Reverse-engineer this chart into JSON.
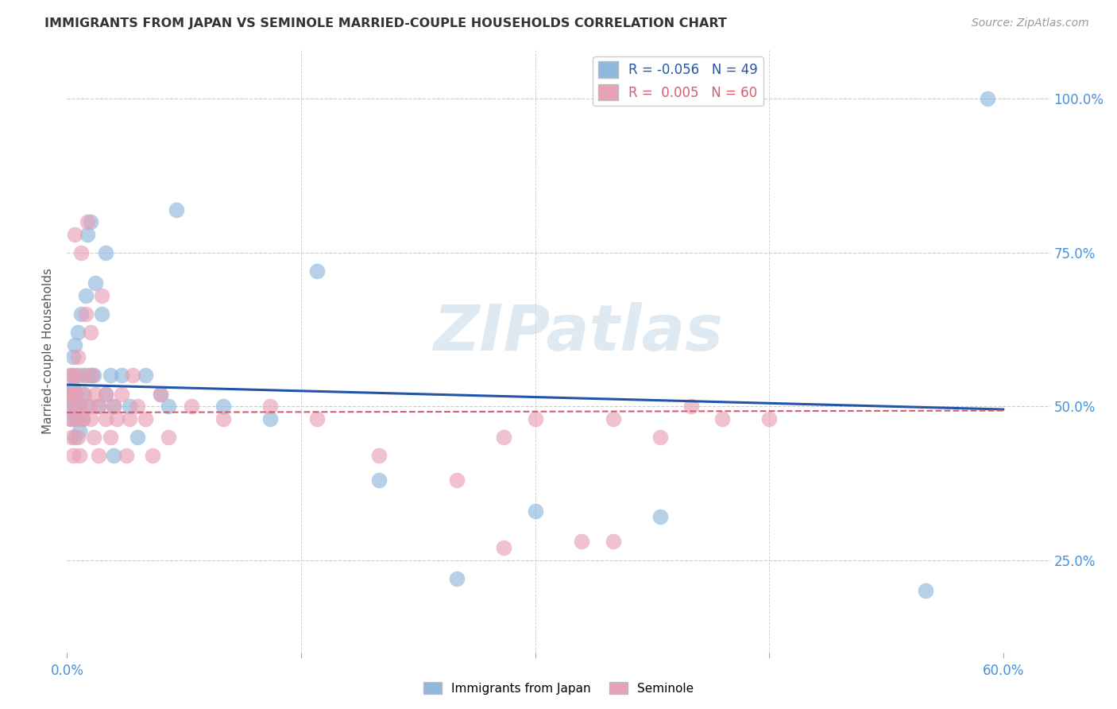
{
  "title": "IMMIGRANTS FROM JAPAN VS SEMINOLE MARRIED-COUPLE HOUSEHOLDS CORRELATION CHART",
  "source": "Source: ZipAtlas.com",
  "ylabel": "Married-couple Households",
  "ytick_positions": [
    0.25,
    0.5,
    0.75,
    1.0
  ],
  "xtick_positions": [
    0.0,
    0.15,
    0.3,
    0.45,
    0.6
  ],
  "xtick_labels_show": [
    "0.0%",
    "",
    "",
    "",
    "60.0%"
  ],
  "xlim": [
    0.0,
    0.63
  ],
  "ylim": [
    0.1,
    1.08
  ],
  "blue_R": -0.056,
  "blue_N": 49,
  "pink_R": 0.005,
  "pink_N": 60,
  "watermark": "ZIPatlas",
  "blue_scatter_x": [
    0.001,
    0.002,
    0.003,
    0.003,
    0.004,
    0.004,
    0.005,
    0.005,
    0.005,
    0.006,
    0.006,
    0.007,
    0.007,
    0.008,
    0.008,
    0.009,
    0.01,
    0.01,
    0.012,
    0.012,
    0.013,
    0.013,
    0.015,
    0.015,
    0.017,
    0.018,
    0.02,
    0.022,
    0.025,
    0.025,
    0.028,
    0.03,
    0.03,
    0.035,
    0.04,
    0.045,
    0.05,
    0.06,
    0.065,
    0.07,
    0.1,
    0.13,
    0.16,
    0.2,
    0.25,
    0.3,
    0.38,
    0.55,
    0.59
  ],
  "blue_scatter_y": [
    0.52,
    0.5,
    0.55,
    0.48,
    0.53,
    0.58,
    0.5,
    0.45,
    0.6,
    0.52,
    0.48,
    0.55,
    0.62,
    0.5,
    0.46,
    0.65,
    0.52,
    0.48,
    0.68,
    0.55,
    0.5,
    0.78,
    0.55,
    0.8,
    0.55,
    0.7,
    0.5,
    0.65,
    0.52,
    0.75,
    0.55,
    0.5,
    0.42,
    0.55,
    0.5,
    0.45,
    0.55,
    0.52,
    0.5,
    0.82,
    0.5,
    0.48,
    0.72,
    0.38,
    0.22,
    0.33,
    0.32,
    0.2,
    1.0
  ],
  "pink_scatter_x": [
    0.001,
    0.002,
    0.002,
    0.003,
    0.003,
    0.004,
    0.004,
    0.005,
    0.005,
    0.006,
    0.006,
    0.007,
    0.007,
    0.008,
    0.008,
    0.009,
    0.01,
    0.01,
    0.011,
    0.012,
    0.013,
    0.014,
    0.015,
    0.015,
    0.016,
    0.017,
    0.018,
    0.02,
    0.02,
    0.022,
    0.025,
    0.025,
    0.028,
    0.03,
    0.032,
    0.035,
    0.038,
    0.04,
    0.042,
    0.045,
    0.05,
    0.055,
    0.06,
    0.065,
    0.08,
    0.1,
    0.13,
    0.16,
    0.2,
    0.25,
    0.28,
    0.3,
    0.33,
    0.35,
    0.38,
    0.4,
    0.42,
    0.45,
    0.28,
    0.35
  ],
  "pink_scatter_y": [
    0.52,
    0.48,
    0.55,
    0.45,
    0.5,
    0.52,
    0.42,
    0.55,
    0.78,
    0.48,
    0.52,
    0.45,
    0.58,
    0.5,
    0.42,
    0.75,
    0.48,
    0.55,
    0.52,
    0.65,
    0.8,
    0.5,
    0.48,
    0.62,
    0.55,
    0.45,
    0.52,
    0.5,
    0.42,
    0.68,
    0.48,
    0.52,
    0.45,
    0.5,
    0.48,
    0.52,
    0.42,
    0.48,
    0.55,
    0.5,
    0.48,
    0.42,
    0.52,
    0.45,
    0.5,
    0.48,
    0.5,
    0.48,
    0.42,
    0.38,
    0.45,
    0.48,
    0.28,
    0.48,
    0.45,
    0.5,
    0.48,
    0.48,
    0.27,
    0.28
  ],
  "blue_line_x0": 0.0,
  "blue_line_x1": 0.6,
  "blue_line_y0": 0.535,
  "blue_line_y1": 0.495,
  "pink_line_x0": 0.0,
  "pink_line_x1": 0.6,
  "pink_line_y0": 0.49,
  "pink_line_y1": 0.493,
  "blue_color": "#90b8dc",
  "pink_color": "#e8a0b4",
  "blue_line_color": "#2255aa",
  "pink_line_color": "#d06070",
  "background_color": "#ffffff",
  "grid_color": "#cccccc",
  "title_color": "#333333",
  "source_color": "#999999",
  "axis_label_color": "#4a90d9",
  "ylabel_color": "#555555"
}
